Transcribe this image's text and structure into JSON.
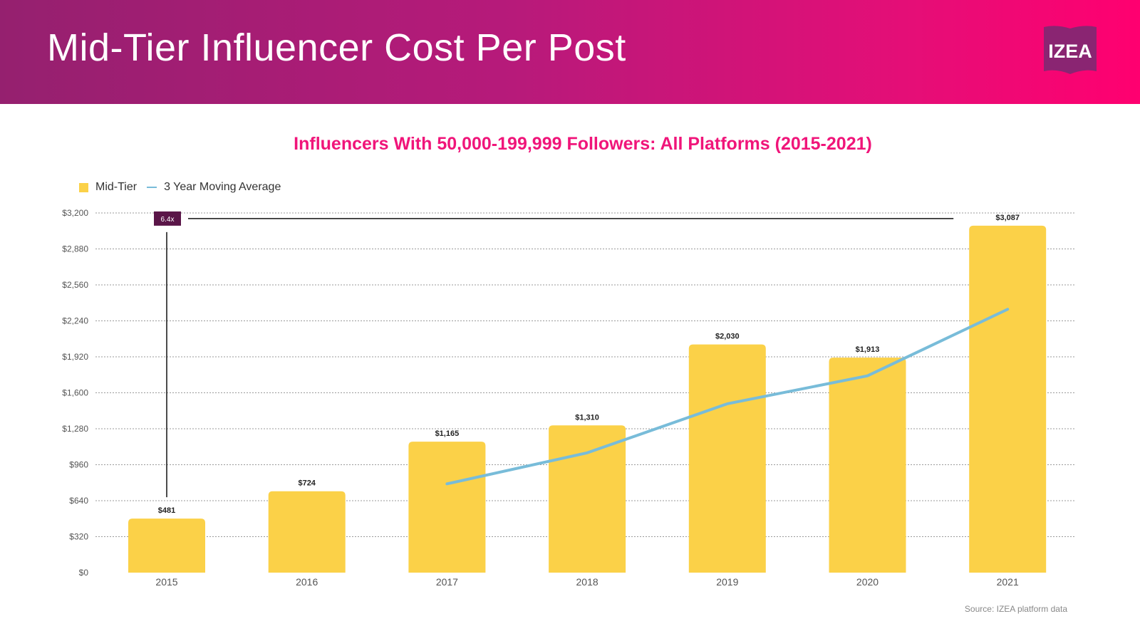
{
  "header": {
    "title": "Mid-Tier Influencer Cost Per Post",
    "logo_text": "IZEA"
  },
  "source": "Source: IZEA platform data",
  "colors": {
    "bar": "#fbd148",
    "line": "#78bcd9",
    "title": "#f0157a",
    "annotation_bg": "#5a1548"
  },
  "chart_data": {
    "type": "bar",
    "title": "Influencers With 50,000-199,999 Followers: All Platforms (2015-2021)",
    "categories": [
      "2015",
      "2016",
      "2017",
      "2018",
      "2019",
      "2020",
      "2021"
    ],
    "series": [
      {
        "name": "Mid-Tier",
        "type": "bar",
        "values": [
          481,
          724,
          1165,
          1310,
          2030,
          1913,
          3087
        ],
        "data_labels": [
          "$481",
          "$724",
          "$1,165",
          "$1,310",
          "$2,030",
          "$1,913",
          "$3,087"
        ]
      },
      {
        "name": "3 Year Moving Average",
        "type": "line",
        "values": [
          null,
          null,
          790,
          1066,
          1502,
          1751,
          2343
        ]
      }
    ],
    "ylim": [
      0,
      3200
    ],
    "yticks": [
      0,
      320,
      640,
      960,
      1280,
      1600,
      1920,
      2240,
      2560,
      2880,
      3200
    ],
    "ytick_labels": [
      "$0",
      "$320",
      "$640",
      "$960",
      "$1,280",
      "$1,600",
      "$1,920",
      "$2,240",
      "$2,560",
      "$2,880",
      "$3,200"
    ],
    "grid": true,
    "legend": "top-left",
    "annotation": {
      "label": "6.4x",
      "from_category": "2015",
      "to_category": "2021"
    }
  }
}
